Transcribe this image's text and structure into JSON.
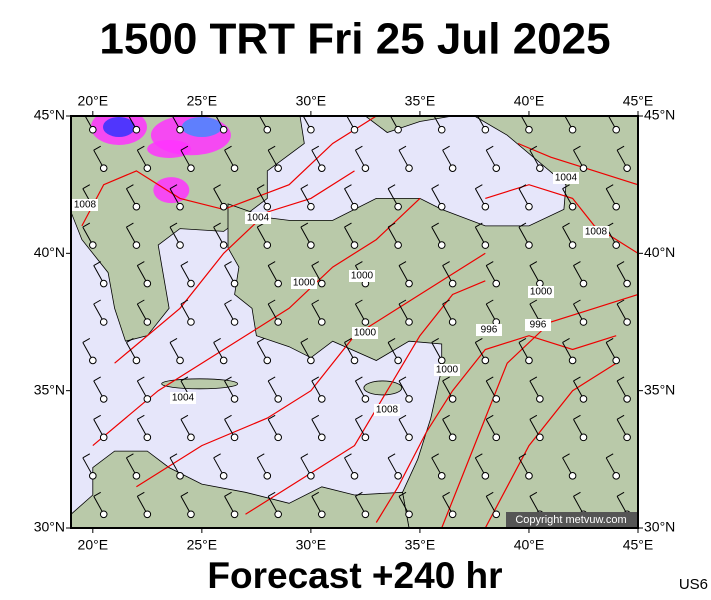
{
  "title": "1500 TRT Fri 25 Jul 2025",
  "footer": "Forecast +240 hr",
  "code": "US6",
  "copyright": "Copyright metvuw.com",
  "map": {
    "lon_range": [
      19,
      45
    ],
    "lat_range": [
      30,
      45
    ],
    "lon_ticks": [
      {
        "value": 20,
        "label": "20°E"
      },
      {
        "value": 25,
        "label": "25°E"
      },
      {
        "value": 30,
        "label": "30°E"
      },
      {
        "value": 35,
        "label": "35°E"
      },
      {
        "value": 40,
        "label": "40°E"
      },
      {
        "value": 45,
        "label": "45°E"
      }
    ],
    "lat_ticks": [
      {
        "value": 30,
        "label": "30°N"
      },
      {
        "value": 35,
        "label": "35°N"
      },
      {
        "value": 40,
        "label": "40°N"
      },
      {
        "value": 45,
        "label": "45°N"
      }
    ],
    "isobar_labels": [
      1008,
      1004,
      1000,
      1000,
      1000,
      1004,
      1008,
      1000,
      996,
      996,
      1000,
      1008,
      1004
    ]
  }
}
